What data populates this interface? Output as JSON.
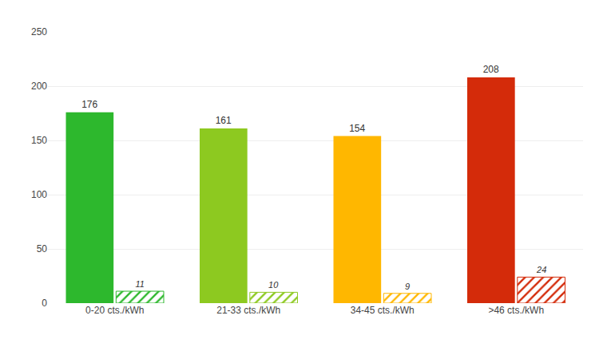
{
  "chart_data": {
    "type": "bar",
    "categories": [
      "0-20 cts./kWh",
      "21-33 cts./kWh",
      "34-45 cts./kWh",
      ">46 cts./kWh"
    ],
    "series": [
      {
        "values": [
          176,
          161,
          154,
          208
        ],
        "colors": [
          "#2db82d",
          "#8dc920",
          "#ffb700",
          "#d42b0a"
        ]
      },
      {
        "values": [
          11,
          10,
          9,
          24
        ],
        "colors": [
          "#2db82d",
          "#8dc920",
          "#ffb700",
          "#d42b0a"
        ]
      }
    ],
    "ylim": [
      0,
      250
    ],
    "yticks": [
      0,
      50,
      100,
      150,
      200,
      250
    ],
    "grid": true,
    "data_labels": true
  }
}
